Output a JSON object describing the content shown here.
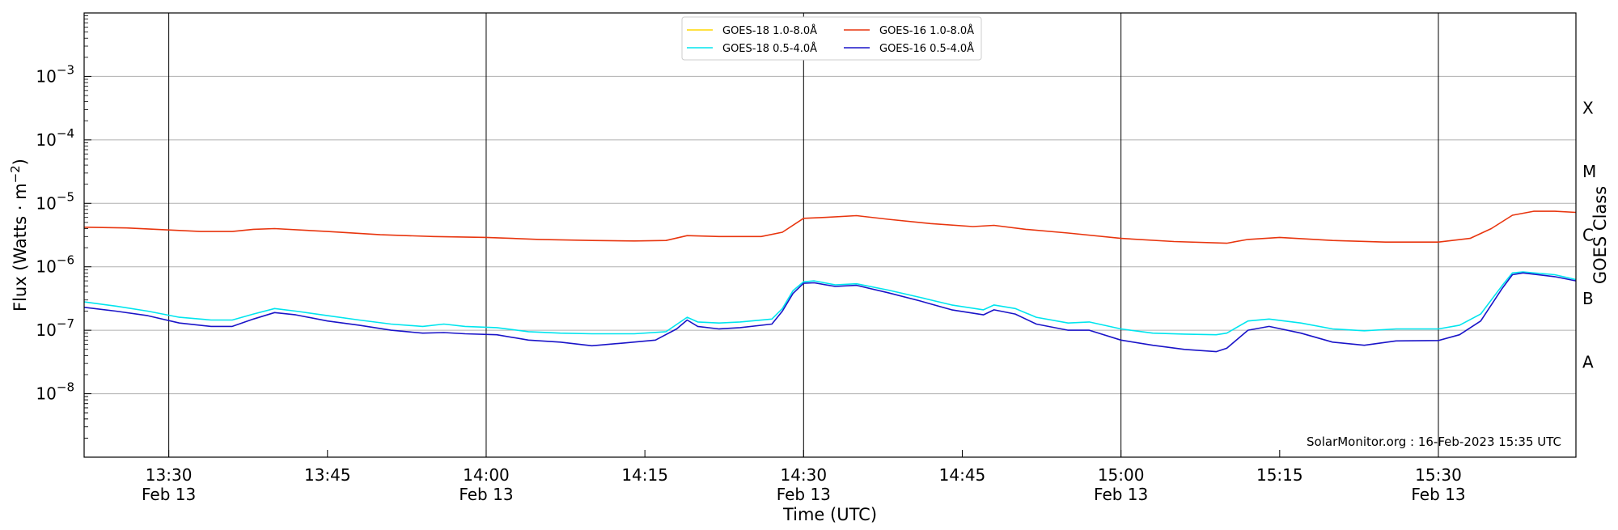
{
  "chart_data": {
    "type": "line",
    "xlabel": "Time (UTC)",
    "ylabel": "Flux (Watts · m⁻²)",
    "y2label": "GOES Class",
    "yscale": "log",
    "xlim": [
      "2023-02-13T13:22",
      "2023-02-13T15:43"
    ],
    "ylim": [
      1e-09,
      0.01
    ],
    "grid": "horizontal at decades, vertical at 30-minute marks",
    "legend_placement": "top-center",
    "x_ticks": [
      {
        "t": "2023-02-13T13:30",
        "label": "13:30",
        "sublabel": "Feb 13"
      },
      {
        "t": "2023-02-13T13:45",
        "label": "13:45",
        "sublabel": ""
      },
      {
        "t": "2023-02-13T14:00",
        "label": "14:00",
        "sublabel": "Feb 13"
      },
      {
        "t": "2023-02-13T14:15",
        "label": "14:15",
        "sublabel": ""
      },
      {
        "t": "2023-02-13T14:30",
        "label": "14:30",
        "sublabel": "Feb 13"
      },
      {
        "t": "2023-02-13T14:45",
        "label": "14:45",
        "sublabel": ""
      },
      {
        "t": "2023-02-13T15:00",
        "label": "15:00",
        "sublabel": "Feb 13"
      },
      {
        "t": "2023-02-13T15:15",
        "label": "15:15",
        "sublabel": ""
      },
      {
        "t": "2023-02-13T15:30",
        "label": "15:30",
        "sublabel": "Feb 13"
      }
    ],
    "vertical_lines": [
      "2023-02-13T13:30",
      "2023-02-13T14:00",
      "2023-02-13T14:30",
      "2023-02-13T15:00",
      "2023-02-13T15:30"
    ],
    "y_ticks": [
      {
        "exp": -8,
        "label": "10",
        "sup": "−8"
      },
      {
        "exp": -7,
        "label": "10",
        "sup": "−7"
      },
      {
        "exp": -6,
        "label": "10",
        "sup": "−6"
      },
      {
        "exp": -5,
        "label": "10",
        "sup": "−5"
      },
      {
        "exp": -4,
        "label": "10",
        "sup": "−4"
      },
      {
        "exp": -3,
        "label": "10",
        "sup": "−3"
      }
    ],
    "goes_classes": [
      {
        "label": "A",
        "exp": -7.5
      },
      {
        "label": "B",
        "exp": -6.5
      },
      {
        "label": "C",
        "exp": -5.5
      },
      {
        "label": "M",
        "exp": -4.5
      },
      {
        "label": "X",
        "exp": -3.5
      }
    ],
    "series": [
      {
        "name": "GOES-18 1.0-8.0Å",
        "color": "#ffd700",
        "data": []
      },
      {
        "name": "GOES-18 0.5-4.0Å",
        "color": "#00e5ee",
        "data": [
          [
            "2023-02-13T13:22",
            2.8e-07
          ],
          [
            "2023-02-13T13:25",
            2.4e-07
          ],
          [
            "2023-02-13T13:28",
            2e-07
          ],
          [
            "2023-02-13T13:31",
            1.6e-07
          ],
          [
            "2023-02-13T13:34",
            1.45e-07
          ],
          [
            "2023-02-13T13:36",
            1.45e-07
          ],
          [
            "2023-02-13T13:38",
            1.8e-07
          ],
          [
            "2023-02-13T13:40",
            2.2e-07
          ],
          [
            "2023-02-13T13:42",
            2e-07
          ],
          [
            "2023-02-13T13:45",
            1.7e-07
          ],
          [
            "2023-02-13T13:48",
            1.45e-07
          ],
          [
            "2023-02-13T13:51",
            1.25e-07
          ],
          [
            "2023-02-13T13:54",
            1.15e-07
          ],
          [
            "2023-02-13T13:56",
            1.25e-07
          ],
          [
            "2023-02-13T13:58",
            1.15e-07
          ],
          [
            "2023-02-13T14:01",
            1.1e-07
          ],
          [
            "2023-02-13T14:04",
            9.5e-08
          ],
          [
            "2023-02-13T14:07",
            9e-08
          ],
          [
            "2023-02-13T14:10",
            8.8e-08
          ],
          [
            "2023-02-13T14:14",
            8.8e-08
          ],
          [
            "2023-02-13T14:17",
            9.5e-08
          ],
          [
            "2023-02-13T14:19",
            1.6e-07
          ],
          [
            "2023-02-13T14:20",
            1.35e-07
          ],
          [
            "2023-02-13T14:22",
            1.3e-07
          ],
          [
            "2023-02-13T14:24",
            1.35e-07
          ],
          [
            "2023-02-13T14:27",
            1.5e-07
          ],
          [
            "2023-02-13T14:28",
            2.2e-07
          ],
          [
            "2023-02-13T14:29",
            4.2e-07
          ],
          [
            "2023-02-13T14:30",
            5.8e-07
          ],
          [
            "2023-02-13T14:31",
            6e-07
          ],
          [
            "2023-02-13T14:33",
            5.2e-07
          ],
          [
            "2023-02-13T14:35",
            5.4e-07
          ],
          [
            "2023-02-13T14:38",
            4.3e-07
          ],
          [
            "2023-02-13T14:41",
            3.3e-07
          ],
          [
            "2023-02-13T14:44",
            2.5e-07
          ],
          [
            "2023-02-13T14:47",
            2.1e-07
          ],
          [
            "2023-02-13T14:48",
            2.5e-07
          ],
          [
            "2023-02-13T14:50",
            2.2e-07
          ],
          [
            "2023-02-13T14:52",
            1.6e-07
          ],
          [
            "2023-02-13T14:55",
            1.3e-07
          ],
          [
            "2023-02-13T14:57",
            1.35e-07
          ],
          [
            "2023-02-13T15:00",
            1.05e-07
          ],
          [
            "2023-02-13T15:03",
            9e-08
          ],
          [
            "2023-02-13T15:06",
            8.7e-08
          ],
          [
            "2023-02-13T15:09",
            8.5e-08
          ],
          [
            "2023-02-13T15:10",
            9e-08
          ],
          [
            "2023-02-13T15:12",
            1.4e-07
          ],
          [
            "2023-02-13T15:14",
            1.5e-07
          ],
          [
            "2023-02-13T15:17",
            1.3e-07
          ],
          [
            "2023-02-13T15:20",
            1.05e-07
          ],
          [
            "2023-02-13T15:23",
            9.8e-08
          ],
          [
            "2023-02-13T15:26",
            1.05e-07
          ],
          [
            "2023-02-13T15:30",
            1.05e-07
          ],
          [
            "2023-02-13T15:32",
            1.2e-07
          ],
          [
            "2023-02-13T15:34",
            1.8e-07
          ],
          [
            "2023-02-13T15:36",
            5e-07
          ],
          [
            "2023-02-13T15:37",
            8e-07
          ],
          [
            "2023-02-13T15:38",
            8.3e-07
          ],
          [
            "2023-02-13T15:41",
            7.5e-07
          ],
          [
            "2023-02-13T15:43",
            6.3e-07
          ]
        ]
      },
      {
        "name": "GOES-16 1.0-8.0Å",
        "color": "#e8350e",
        "data": [
          [
            "2023-02-13T13:22",
            4.2e-06
          ],
          [
            "2023-02-13T13:26",
            4.1e-06
          ],
          [
            "2023-02-13T13:30",
            3.8e-06
          ],
          [
            "2023-02-13T13:33",
            3.6e-06
          ],
          [
            "2023-02-13T13:36",
            3.6e-06
          ],
          [
            "2023-02-13T13:38",
            3.9e-06
          ],
          [
            "2023-02-13T13:40",
            4e-06
          ],
          [
            "2023-02-13T13:45",
            3.6e-06
          ],
          [
            "2023-02-13T13:50",
            3.2e-06
          ],
          [
            "2023-02-13T13:55",
            3e-06
          ],
          [
            "2023-02-13T14:00",
            2.9e-06
          ],
          [
            "2023-02-13T14:05",
            2.7e-06
          ],
          [
            "2023-02-13T14:10",
            2.6e-06
          ],
          [
            "2023-02-13T14:14",
            2.55e-06
          ],
          [
            "2023-02-13T14:17",
            2.6e-06
          ],
          [
            "2023-02-13T14:19",
            3.1e-06
          ],
          [
            "2023-02-13T14:22",
            3e-06
          ],
          [
            "2023-02-13T14:26",
            3e-06
          ],
          [
            "2023-02-13T14:28",
            3.5e-06
          ],
          [
            "2023-02-13T14:30",
            5.8e-06
          ],
          [
            "2023-02-13T14:32",
            6e-06
          ],
          [
            "2023-02-13T14:35",
            6.4e-06
          ],
          [
            "2023-02-13T14:38",
            5.6e-06
          ],
          [
            "2023-02-13T14:42",
            4.8e-06
          ],
          [
            "2023-02-13T14:46",
            4.3e-06
          ],
          [
            "2023-02-13T14:48",
            4.5e-06
          ],
          [
            "2023-02-13T14:51",
            3.9e-06
          ],
          [
            "2023-02-13T14:55",
            3.4e-06
          ],
          [
            "2023-02-13T15:00",
            2.8e-06
          ],
          [
            "2023-02-13T15:05",
            2.5e-06
          ],
          [
            "2023-02-13T15:10",
            2.35e-06
          ],
          [
            "2023-02-13T15:12",
            2.7e-06
          ],
          [
            "2023-02-13T15:15",
            2.9e-06
          ],
          [
            "2023-02-13T15:20",
            2.6e-06
          ],
          [
            "2023-02-13T15:25",
            2.45e-06
          ],
          [
            "2023-02-13T15:30",
            2.45e-06
          ],
          [
            "2023-02-13T15:33",
            2.8e-06
          ],
          [
            "2023-02-13T15:35",
            4e-06
          ],
          [
            "2023-02-13T15:37",
            6.5e-06
          ],
          [
            "2023-02-13T15:39",
            7.5e-06
          ],
          [
            "2023-02-13T15:41",
            7.5e-06
          ],
          [
            "2023-02-13T15:43",
            7.2e-06
          ]
        ]
      },
      {
        "name": "GOES-16 0.5-4.0Å",
        "color": "#1a14c8",
        "data": [
          [
            "2023-02-13T13:22",
            2.3e-07
          ],
          [
            "2023-02-13T13:25",
            2e-07
          ],
          [
            "2023-02-13T13:28",
            1.7e-07
          ],
          [
            "2023-02-13T13:31",
            1.3e-07
          ],
          [
            "2023-02-13T13:34",
            1.15e-07
          ],
          [
            "2023-02-13T13:36",
            1.15e-07
          ],
          [
            "2023-02-13T13:38",
            1.5e-07
          ],
          [
            "2023-02-13T13:40",
            1.9e-07
          ],
          [
            "2023-02-13T13:42",
            1.75e-07
          ],
          [
            "2023-02-13T13:45",
            1.4e-07
          ],
          [
            "2023-02-13T13:48",
            1.2e-07
          ],
          [
            "2023-02-13T13:51",
            1e-07
          ],
          [
            "2023-02-13T13:54",
            9e-08
          ],
          [
            "2023-02-13T13:56",
            9.2e-08
          ],
          [
            "2023-02-13T13:58",
            8.8e-08
          ],
          [
            "2023-02-13T14:01",
            8.5e-08
          ],
          [
            "2023-02-13T14:04",
            7e-08
          ],
          [
            "2023-02-13T14:07",
            6.5e-08
          ],
          [
            "2023-02-13T14:10",
            5.7e-08
          ],
          [
            "2023-02-13T14:13",
            6.3e-08
          ],
          [
            "2023-02-13T14:16",
            7e-08
          ],
          [
            "2023-02-13T14:18",
            1.05e-07
          ],
          [
            "2023-02-13T14:19",
            1.45e-07
          ],
          [
            "2023-02-13T14:20",
            1.15e-07
          ],
          [
            "2023-02-13T14:22",
            1.05e-07
          ],
          [
            "2023-02-13T14:24",
            1.1e-07
          ],
          [
            "2023-02-13T14:27",
            1.25e-07
          ],
          [
            "2023-02-13T14:28",
            2e-07
          ],
          [
            "2023-02-13T14:29",
            3.8e-07
          ],
          [
            "2023-02-13T14:30",
            5.5e-07
          ],
          [
            "2023-02-13T14:31",
            5.6e-07
          ],
          [
            "2023-02-13T14:33",
            4.9e-07
          ],
          [
            "2023-02-13T14:35",
            5.1e-07
          ],
          [
            "2023-02-13T14:38",
            3.9e-07
          ],
          [
            "2023-02-13T14:41",
            2.9e-07
          ],
          [
            "2023-02-13T14:44",
            2.1e-07
          ],
          [
            "2023-02-13T14:47",
            1.75e-07
          ],
          [
            "2023-02-13T14:48",
            2.1e-07
          ],
          [
            "2023-02-13T14:50",
            1.8e-07
          ],
          [
            "2023-02-13T14:52",
            1.25e-07
          ],
          [
            "2023-02-13T14:55",
            1e-07
          ],
          [
            "2023-02-13T14:57",
            1e-07
          ],
          [
            "2023-02-13T15:00",
            7e-08
          ],
          [
            "2023-02-13T15:03",
            5.8e-08
          ],
          [
            "2023-02-13T15:06",
            5e-08
          ],
          [
            "2023-02-13T15:09",
            4.6e-08
          ],
          [
            "2023-02-13T15:10",
            5.2e-08
          ],
          [
            "2023-02-13T15:12",
            1e-07
          ],
          [
            "2023-02-13T15:14",
            1.15e-07
          ],
          [
            "2023-02-13T15:17",
            9e-08
          ],
          [
            "2023-02-13T15:20",
            6.5e-08
          ],
          [
            "2023-02-13T15:23",
            5.8e-08
          ],
          [
            "2023-02-13T15:26",
            6.8e-08
          ],
          [
            "2023-02-13T15:30",
            6.9e-08
          ],
          [
            "2023-02-13T15:32",
            8.5e-08
          ],
          [
            "2023-02-13T15:34",
            1.4e-07
          ],
          [
            "2023-02-13T15:36",
            4.5e-07
          ],
          [
            "2023-02-13T15:37",
            7.5e-07
          ],
          [
            "2023-02-13T15:38",
            8e-07
          ],
          [
            "2023-02-13T15:41",
            7e-07
          ],
          [
            "2023-02-13T15:43",
            6e-07
          ]
        ]
      }
    ],
    "annotation": "SolarMonitor.org : 16-Feb-2023 15:35 UTC"
  }
}
